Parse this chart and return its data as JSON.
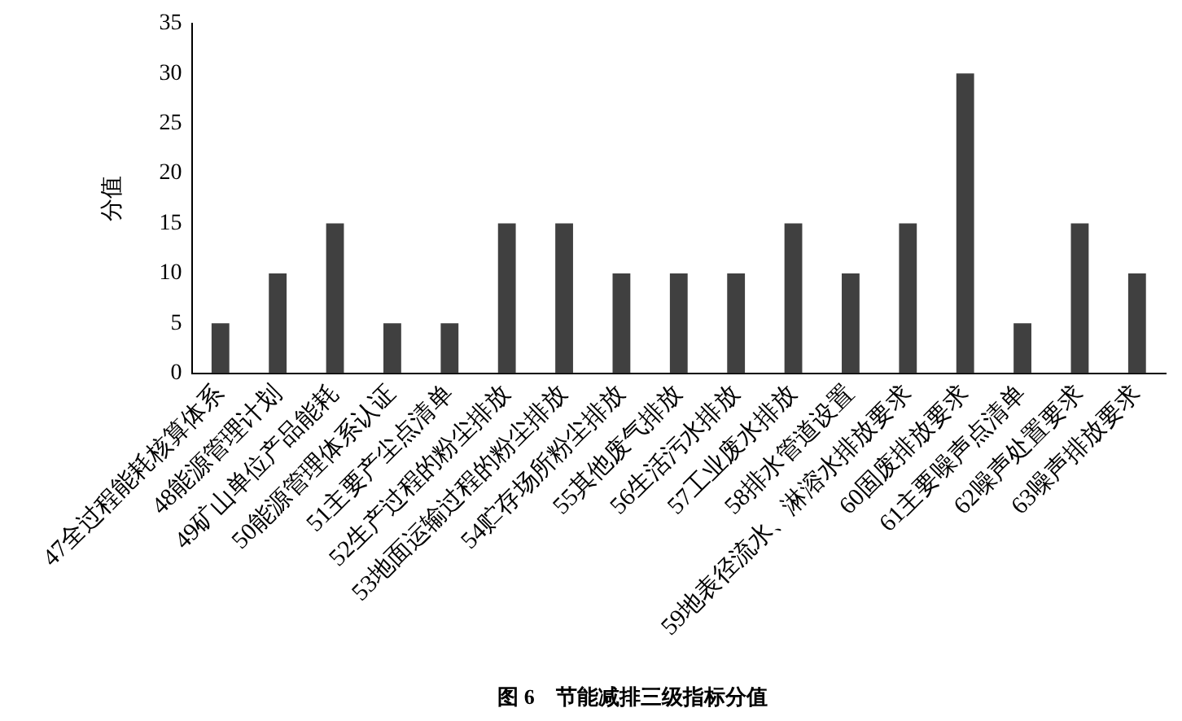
{
  "chart_data": {
    "type": "bar",
    "title": "图 6　节能减排三级指标分值",
    "ylabel": "分值",
    "categories": [
      "47全过程能耗核算体系",
      "48能源管理计划",
      "49矿山单位产品能耗",
      "50能源管理体系认证",
      "51主要产尘点清单",
      "52生产过程的粉尘排放",
      "53地面运输过程的粉尘排放",
      "54贮存场所粉尘排放",
      "55其他废气排放",
      "56生活污水排放",
      "57工业废水排放",
      "58排水管道设置",
      "59地表径流水、淋溶水排放要求",
      "60固废排放要求",
      "61主要噪声点清单",
      "62噪声处置要求",
      "63噪声排放要求"
    ],
    "values": [
      5,
      10,
      15,
      5,
      5,
      15,
      15,
      10,
      10,
      10,
      15,
      10,
      15,
      30,
      5,
      15,
      10
    ],
    "color": "#404040",
    "ylim": [
      0,
      35
    ],
    "yticks": [
      0,
      5,
      10,
      15,
      20,
      25,
      30,
      35
    ],
    "grid": false,
    "legend": false
  }
}
